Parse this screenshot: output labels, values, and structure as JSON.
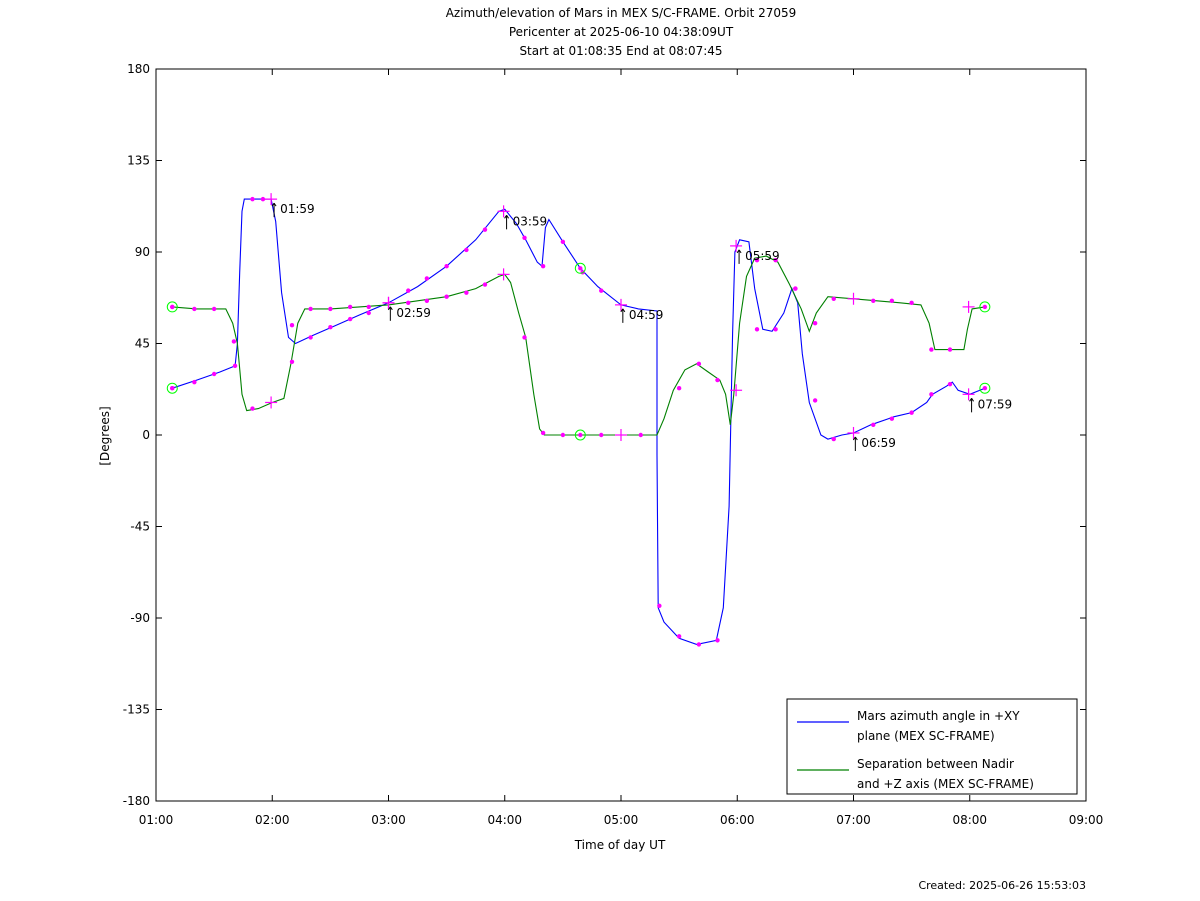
{
  "chart_data": {
    "type": "line",
    "title_lines": [
      "Azimuth/elevation of Mars in MEX S/C-FRAME.  Orbit 27059",
      "Pericenter at 2025-06-10 04:38:09UT",
      "Start at 01:08:35 End at 08:07:45"
    ],
    "xlabel": "Time of day UT",
    "ylabel": "[Degrees]",
    "x_unit": "hours UT",
    "xlim": [
      1.0,
      9.0
    ],
    "ylim": [
      -180,
      180
    ],
    "x_ticks": [
      {
        "v": 1,
        "label": "01:00"
      },
      {
        "v": 2,
        "label": "02:00"
      },
      {
        "v": 3,
        "label": "03:00"
      },
      {
        "v": 4,
        "label": "04:00"
      },
      {
        "v": 5,
        "label": "05:00"
      },
      {
        "v": 6,
        "label": "06:00"
      },
      {
        "v": 7,
        "label": "07:00"
      },
      {
        "v": 8,
        "label": "08:00"
      },
      {
        "v": 9,
        "label": "09:00"
      }
    ],
    "y_ticks": [
      {
        "v": 180,
        "label": "180"
      },
      {
        "v": 135,
        "label": "135"
      },
      {
        "v": 90,
        "label": "90"
      },
      {
        "v": 45,
        "label": "45"
      },
      {
        "v": 0,
        "label": "0"
      },
      {
        "v": -45,
        "label": "-45"
      },
      {
        "v": -90,
        "label": "-90"
      },
      {
        "v": -135,
        "label": "-135"
      },
      {
        "v": -180,
        "label": "-180"
      }
    ],
    "grid": false,
    "legend_position": "bottom-right",
    "series": [
      {
        "name": "Mars azimuth angle in +XY plane (MEX SC-FRAME)",
        "legend_lines": [
          "Mars azimuth angle in +XY",
          "plane (MEX SC-FRAME)"
        ],
        "color": "#0000ff",
        "points": [
          [
            1.14,
            23
          ],
          [
            1.35,
            27
          ],
          [
            1.55,
            31
          ],
          [
            1.68,
            34
          ],
          [
            1.7,
            45
          ],
          [
            1.72,
            80
          ],
          [
            1.74,
            110
          ],
          [
            1.76,
            116
          ],
          [
            1.95,
            116
          ],
          [
            1.99,
            116
          ],
          [
            2.03,
            105
          ],
          [
            2.08,
            70
          ],
          [
            2.14,
            48
          ],
          [
            2.2,
            45
          ],
          [
            2.35,
            49
          ],
          [
            2.55,
            54
          ],
          [
            2.75,
            59
          ],
          [
            3.0,
            65
          ],
          [
            3.25,
            73
          ],
          [
            3.5,
            83
          ],
          [
            3.75,
            96
          ],
          [
            3.95,
            110
          ],
          [
            4.0,
            111
          ],
          [
            4.1,
            104
          ],
          [
            4.18,
            96
          ],
          [
            4.28,
            85
          ],
          [
            4.32,
            83
          ],
          [
            4.35,
            102
          ],
          [
            4.38,
            106
          ],
          [
            4.5,
            95
          ],
          [
            4.65,
            82
          ],
          [
            4.8,
            73
          ],
          [
            5.0,
            64
          ],
          [
            5.15,
            62
          ],
          [
            5.31,
            61
          ],
          [
            5.31,
            -10
          ],
          [
            5.32,
            -85
          ],
          [
            5.37,
            -92
          ],
          [
            5.5,
            -100
          ],
          [
            5.65,
            -103
          ],
          [
            5.82,
            -101
          ],
          [
            5.88,
            -85
          ],
          [
            5.93,
            -35
          ],
          [
            5.96,
            50
          ],
          [
            5.98,
            90
          ],
          [
            6.02,
            96
          ],
          [
            6.1,
            95
          ],
          [
            6.15,
            72
          ],
          [
            6.22,
            52
          ],
          [
            6.3,
            51
          ],
          [
            6.4,
            60
          ],
          [
            6.47,
            72
          ],
          [
            6.52,
            65
          ],
          [
            6.56,
            40
          ],
          [
            6.62,
            16
          ],
          [
            6.72,
            0
          ],
          [
            6.78,
            -2
          ],
          [
            6.9,
            0
          ],
          [
            7.0,
            1
          ],
          [
            7.15,
            5
          ],
          [
            7.35,
            9
          ],
          [
            7.5,
            11
          ],
          [
            7.63,
            16
          ],
          [
            7.68,
            20
          ],
          [
            7.8,
            24
          ],
          [
            7.85,
            26
          ],
          [
            7.9,
            22
          ],
          [
            8.0,
            20
          ],
          [
            8.13,
            23
          ]
        ]
      },
      {
        "name": "Separation between Nadir and +Z axis (MEX SC-FRAME)",
        "legend_lines": [
          "Separation between Nadir",
          "and +Z axis (MEX SC-FRAME)"
        ],
        "color": "#008000",
        "points": [
          [
            1.14,
            63
          ],
          [
            1.35,
            62
          ],
          [
            1.6,
            62
          ],
          [
            1.66,
            55
          ],
          [
            1.7,
            45
          ],
          [
            1.74,
            20
          ],
          [
            1.78,
            12
          ],
          [
            1.88,
            13
          ],
          [
            2.0,
            16
          ],
          [
            2.1,
            18
          ],
          [
            2.16,
            35
          ],
          [
            2.22,
            55
          ],
          [
            2.28,
            62
          ],
          [
            2.5,
            62
          ],
          [
            2.75,
            63
          ],
          [
            3.0,
            64
          ],
          [
            3.25,
            66
          ],
          [
            3.5,
            68
          ],
          [
            3.75,
            72
          ],
          [
            3.95,
            78
          ],
          [
            4.0,
            79
          ],
          [
            4.05,
            75
          ],
          [
            4.12,
            60
          ],
          [
            4.18,
            48
          ],
          [
            4.25,
            20
          ],
          [
            4.3,
            3
          ],
          [
            4.34,
            0
          ],
          [
            4.6,
            0
          ],
          [
            5.0,
            0
          ],
          [
            5.31,
            0
          ],
          [
            5.37,
            8
          ],
          [
            5.45,
            22
          ],
          [
            5.55,
            32
          ],
          [
            5.65,
            35
          ],
          [
            5.75,
            31
          ],
          [
            5.85,
            27
          ],
          [
            5.9,
            20
          ],
          [
            5.94,
            5
          ],
          [
            5.97,
            20
          ],
          [
            6.02,
            55
          ],
          [
            6.08,
            78
          ],
          [
            6.15,
            87
          ],
          [
            6.25,
            88
          ],
          [
            6.35,
            85
          ],
          [
            6.45,
            74
          ],
          [
            6.55,
            62
          ],
          [
            6.62,
            51
          ],
          [
            6.68,
            60
          ],
          [
            6.78,
            68
          ],
          [
            7.0,
            67
          ],
          [
            7.2,
            66
          ],
          [
            7.4,
            65
          ],
          [
            7.58,
            64
          ],
          [
            7.65,
            55
          ],
          [
            7.7,
            42
          ],
          [
            7.95,
            42
          ],
          [
            7.98,
            52
          ],
          [
            8.02,
            62
          ],
          [
            8.13,
            63
          ]
        ]
      }
    ],
    "dot_markers": [
      {
        "series": 0,
        "points": [
          [
            1.14,
            23
          ],
          [
            1.33,
            26
          ],
          [
            1.5,
            30
          ],
          [
            1.68,
            34
          ],
          [
            1.83,
            116
          ],
          [
            1.92,
            116
          ],
          [
            2.17,
            54
          ],
          [
            2.33,
            48
          ],
          [
            2.5,
            53
          ],
          [
            2.67,
            57
          ],
          [
            2.83,
            60
          ],
          [
            3.17,
            71
          ],
          [
            3.33,
            77
          ],
          [
            3.5,
            83
          ],
          [
            3.67,
            91
          ],
          [
            3.83,
            101
          ],
          [
            4.17,
            97
          ],
          [
            4.33,
            83
          ],
          [
            4.5,
            95
          ],
          [
            4.67,
            80
          ],
          [
            4.83,
            71
          ],
          [
            5.33,
            -84
          ],
          [
            5.5,
            -99
          ],
          [
            5.67,
            -103
          ],
          [
            5.83,
            -101
          ],
          [
            6.17,
            52
          ],
          [
            6.33,
            52
          ],
          [
            6.5,
            72
          ],
          [
            6.67,
            17
          ],
          [
            6.83,
            -2
          ],
          [
            7.17,
            5
          ],
          [
            7.33,
            8
          ],
          [
            7.5,
            11
          ],
          [
            7.67,
            20
          ],
          [
            7.83,
            25
          ]
        ]
      },
      {
        "series": 1,
        "points": [
          [
            1.14,
            63
          ],
          [
            1.33,
            62
          ],
          [
            1.5,
            62
          ],
          [
            1.67,
            46
          ],
          [
            1.83,
            13
          ],
          [
            2.17,
            36
          ],
          [
            2.33,
            62
          ],
          [
            2.5,
            62
          ],
          [
            2.67,
            63
          ],
          [
            2.83,
            63
          ],
          [
            3.17,
            65
          ],
          [
            3.33,
            66
          ],
          [
            3.5,
            68
          ],
          [
            3.67,
            70
          ],
          [
            3.83,
            74
          ],
          [
            4.17,
            48
          ],
          [
            4.33,
            1
          ],
          [
            4.5,
            0
          ],
          [
            4.83,
            0
          ],
          [
            5.17,
            0
          ],
          [
            5.5,
            23
          ],
          [
            5.67,
            35
          ],
          [
            5.83,
            27
          ],
          [
            6.17,
            86
          ],
          [
            6.33,
            86
          ],
          [
            6.5,
            72
          ],
          [
            6.67,
            55
          ],
          [
            6.83,
            67
          ],
          [
            7.17,
            66
          ],
          [
            7.33,
            66
          ],
          [
            7.5,
            65
          ],
          [
            7.67,
            42
          ],
          [
            7.83,
            42
          ]
        ]
      }
    ],
    "plus_markers": [
      {
        "series": 0,
        "points": [
          [
            1.99,
            116
          ],
          [
            3.0,
            65
          ],
          [
            3.99,
            110
          ],
          [
            5.0,
            64
          ],
          [
            5.99,
            93
          ],
          [
            7.0,
            1
          ],
          [
            7.99,
            20
          ]
        ]
      },
      {
        "series": 1,
        "points": [
          [
            1.99,
            16
          ],
          [
            3.0,
            65
          ],
          [
            3.99,
            79
          ],
          [
            5.0,
            0
          ],
          [
            5.99,
            22
          ],
          [
            7.0,
            67
          ],
          [
            7.99,
            63
          ]
        ]
      }
    ],
    "circle_markers": [
      [
        1.14,
        23
      ],
      [
        1.14,
        63
      ],
      [
        4.65,
        0
      ],
      [
        4.65,
        82
      ],
      [
        8.13,
        23
      ],
      [
        8.13,
        63
      ]
    ],
    "time_annotations": [
      {
        "x": 1.99,
        "y": 116,
        "label": "01:59"
      },
      {
        "x": 2.99,
        "y": 65,
        "label": "02:59"
      },
      {
        "x": 3.99,
        "y": 110,
        "label": "03:59"
      },
      {
        "x": 4.99,
        "y": 64,
        "label": "04:59"
      },
      {
        "x": 5.99,
        "y": 93,
        "label": "05:59"
      },
      {
        "x": 6.99,
        "y": 1,
        "label": "06:59"
      },
      {
        "x": 7.99,
        "y": 20,
        "label": "07:59"
      }
    ],
    "marker_colors": {
      "dot": "#ff00ff",
      "plus": "#ff00ff",
      "circle": "#00ff00"
    }
  },
  "footer": {
    "created": "Created: 2025-06-26 15:53:03"
  }
}
